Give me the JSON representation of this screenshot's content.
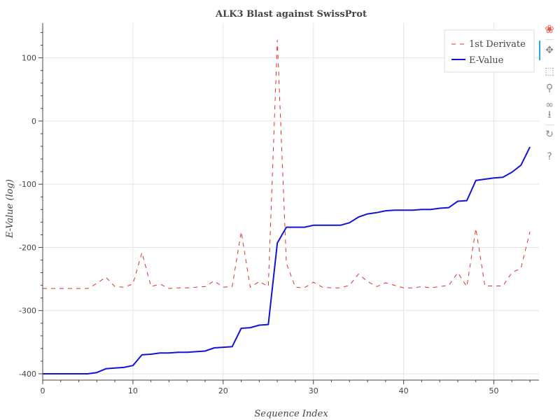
{
  "chart_data": {
    "type": "line",
    "title": "ALK3 Blast against SwissProt",
    "xlabel": "Sequence Index",
    "ylabel": "E-Value (log)",
    "xlim": [
      0,
      55
    ],
    "ylim": [
      -410,
      155
    ],
    "x_ticks": [
      0,
      10,
      20,
      30,
      40,
      50
    ],
    "y_ticks": [
      -400,
      -300,
      -200,
      -100,
      0,
      100
    ],
    "grid": true,
    "legend_position": "top-right",
    "series": [
      {
        "name": "1st Derivate",
        "color": "#e0302a",
        "dash": "dashed",
        "x": [
          0,
          1,
          2,
          3,
          4,
          5,
          6,
          7,
          8,
          9,
          10,
          11,
          12,
          13,
          14,
          15,
          16,
          17,
          18,
          19,
          20,
          21,
          22,
          23,
          24,
          25,
          26,
          27,
          28,
          29,
          30,
          31,
          32,
          33,
          34,
          35,
          36,
          37,
          38,
          39,
          40,
          41,
          42,
          43,
          44,
          45,
          46,
          47,
          48,
          49,
          50,
          51,
          52,
          53,
          54
        ],
        "y": [
          -265,
          -265,
          -265,
          -265,
          -265,
          -265,
          -257,
          -247,
          -262,
          -263,
          -258,
          -208,
          -262,
          -258,
          -265,
          -264,
          -264,
          -263,
          -262,
          -253,
          -263,
          -262,
          -175,
          -263,
          -254,
          -262,
          128,
          -225,
          -263,
          -264,
          -255,
          -263,
          -264,
          -264,
          -260,
          -242,
          -254,
          -262,
          -256,
          -260,
          -264,
          -264,
          -262,
          -264,
          -262,
          -260,
          -240,
          -262,
          -170,
          -261,
          -261,
          -261,
          -240,
          -233,
          -175
        ]
      },
      {
        "name": "E-Value",
        "color": "#1313d6",
        "dash": "solid",
        "x": [
          0,
          1,
          2,
          3,
          4,
          5,
          6,
          7,
          8,
          9,
          10,
          11,
          12,
          13,
          14,
          15,
          16,
          17,
          18,
          19,
          20,
          21,
          22,
          23,
          24,
          25,
          26,
          27,
          28,
          29,
          30,
          31,
          32,
          33,
          34,
          35,
          36,
          37,
          38,
          39,
          40,
          41,
          42,
          43,
          44,
          45,
          46,
          47,
          48,
          49,
          50,
          51,
          52,
          53,
          54
        ],
        "y": [
          -400,
          -400,
          -400,
          -400,
          -400,
          -400,
          -398,
          -392,
          -391,
          -390,
          -387,
          -370,
          -369,
          -367,
          -367,
          -366,
          -366,
          -365,
          -364,
          -359,
          -358,
          -357,
          -328,
          -327,
          -323,
          -322,
          -193,
          -168,
          -168,
          -168,
          -165,
          -165,
          -165,
          -165,
          -161,
          -152,
          -147,
          -145,
          -142,
          -141,
          -141,
          -141,
          -140,
          -140,
          -138,
          -137,
          -127,
          -126,
          -94,
          -92,
          -90,
          -89,
          -81,
          -70,
          -41
        ]
      }
    ]
  },
  "toolbar": {
    "items": [
      {
        "name": "bokeh-logo-icon",
        "glyph": "❀"
      },
      {
        "name": "pan-icon",
        "glyph": "✥"
      },
      {
        "name": "box-zoom-icon",
        "glyph": "⬚"
      },
      {
        "name": "wheel-zoom-icon",
        "glyph": "⚲"
      },
      {
        "name": "lasso-select-icon",
        "glyph": "∞"
      },
      {
        "name": "save-icon",
        "glyph": "⭳"
      },
      {
        "name": "reset-icon",
        "glyph": "↻"
      },
      {
        "name": "help-icon",
        "glyph": "?"
      }
    ]
  }
}
